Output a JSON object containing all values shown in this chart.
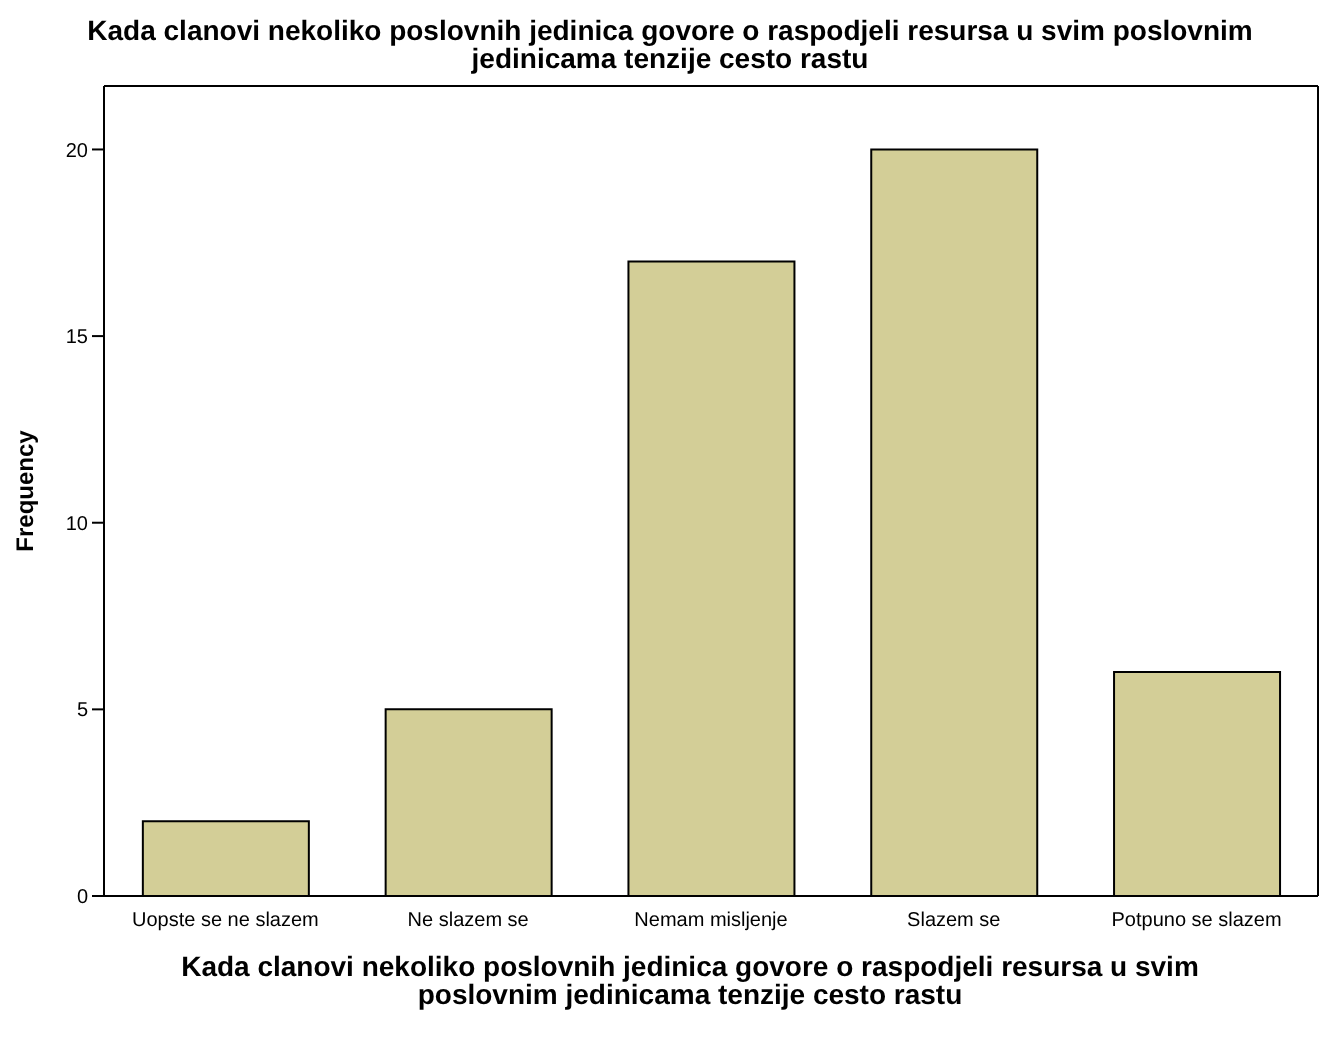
{
  "chart_data": {
    "type": "bar",
    "title": "Kada clanovi nekoliko poslovnih jedinica govore o raspodjeli resursa u svim poslovnim jedinicama tenzije cesto rastu",
    "xlabel": "Kada clanovi nekoliko poslovnih jedinica govore o raspodjeli resursa u svim poslovnim jedinicama tenzije cesto rastu",
    "ylabel": "Frequency",
    "categories": [
      "Uopste se ne slazem",
      "Ne slazem se",
      "Nemam misljenje",
      "Slazem se",
      "Potpuno se slazem"
    ],
    "values": [
      2,
      5,
      17,
      20,
      6
    ],
    "color": "#d3ce97",
    "ylim": [
      0,
      21.7
    ],
    "yticks": [
      0,
      5,
      10,
      15,
      20
    ]
  }
}
